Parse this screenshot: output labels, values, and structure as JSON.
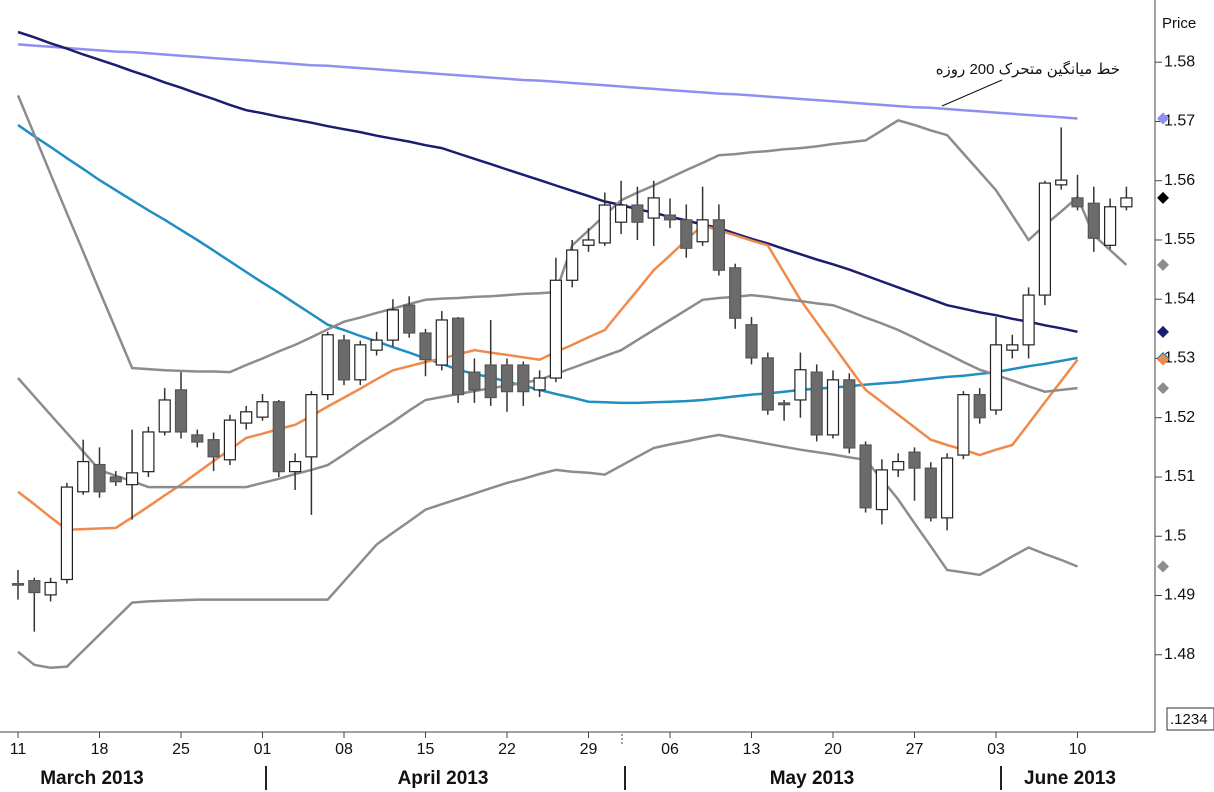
{
  "chart_data": {
    "type": "candlestick",
    "y_label": "Price",
    "annotation": "خط میانگین متحرک 200 روزه",
    "corner_label": ".1234",
    "months": [
      "March 2013",
      "April 2013",
      "May 2013",
      "June 2013"
    ],
    "categories": [
      "11",
      null,
      null,
      null,
      null,
      "18",
      null,
      null,
      null,
      null,
      "25",
      null,
      null,
      null,
      null,
      "01",
      null,
      null,
      null,
      null,
      "08",
      null,
      null,
      null,
      null,
      "15",
      null,
      null,
      null,
      null,
      "22",
      null,
      null,
      null,
      null,
      "29",
      null,
      null,
      null,
      null,
      "06",
      null,
      null,
      null,
      null,
      "13",
      null,
      null,
      null,
      null,
      "20",
      null,
      null,
      null,
      null,
      "27",
      null,
      null,
      null,
      null,
      "03",
      null,
      null,
      null,
      null,
      "10",
      null,
      null,
      null
    ],
    "open": [
      1.492,
      1.4925,
      1.4901,
      1.4927,
      1.5075,
      1.5121,
      1.51,
      1.5087,
      1.5109,
      1.5176,
      1.5247,
      1.5171,
      1.5163,
      1.5129,
      1.5191,
      1.5201,
      1.5227,
      1.5109,
      1.5134,
      1.5239,
      1.5331,
      1.5264,
      1.5314,
      1.5331,
      1.539,
      1.5343,
      1.5289,
      1.5368,
      1.5277,
      1.5289,
      1.5289,
      1.5289,
      1.5247,
      1.5267,
      1.5432,
      1.5491,
      1.5495,
      1.553,
      1.5559,
      1.5537,
      1.5542,
      1.5534,
      1.5497,
      1.5534,
      1.5453,
      1.5357,
      1.5301,
      1.5225,
      1.523,
      1.5277,
      1.5171,
      1.5264,
      1.5154,
      1.5045,
      1.5112,
      1.5142,
      1.5115,
      1.5031,
      1.5137,
      1.5239,
      1.5213,
      1.5314,
      1.5323,
      1.5407,
      1.5593,
      1.5571,
      1.5562,
      1.5491,
      1.5556
    ],
    "high": [
      1.4943,
      1.493,
      1.493,
      1.509,
      1.5163,
      1.515,
      1.511,
      1.518,
      1.5185,
      1.525,
      1.5277,
      1.518,
      1.5175,
      1.5205,
      1.522,
      1.524,
      1.523,
      1.514,
      1.5245,
      1.5345,
      1.534,
      1.533,
      1.5345,
      1.54,
      1.5405,
      1.535,
      1.538,
      1.537,
      1.53,
      1.5365,
      1.53,
      1.5295,
      1.528,
      1.547,
      1.55,
      1.552,
      1.558,
      1.56,
      1.559,
      1.56,
      1.557,
      1.556,
      1.559,
      1.556,
      1.546,
      1.537,
      1.531,
      1.523,
      1.531,
      1.529,
      1.528,
      1.5275,
      1.516,
      1.513,
      1.514,
      1.515,
      1.5125,
      1.514,
      1.5245,
      1.525,
      1.537,
      1.534,
      1.542,
      1.56,
      1.569,
      1.561,
      1.559,
      1.557,
      1.559
    ],
    "low": [
      1.4893,
      1.4839,
      1.489,
      1.492,
      1.507,
      1.5065,
      1.5085,
      1.5028,
      1.51,
      1.517,
      1.5165,
      1.515,
      1.511,
      1.512,
      1.518,
      1.5195,
      1.51,
      1.5078,
      1.5036,
      1.523,
      1.5255,
      1.5255,
      1.5305,
      1.532,
      1.5335,
      1.527,
      1.528,
      1.5225,
      1.5225,
      1.522,
      1.521,
      1.522,
      1.5235,
      1.526,
      1.542,
      1.548,
      1.549,
      1.551,
      1.55,
      1.549,
      1.552,
      1.547,
      1.549,
      1.544,
      1.535,
      1.529,
      1.5205,
      1.5195,
      1.52,
      1.516,
      1.5165,
      1.514,
      1.504,
      1.502,
      1.51,
      1.506,
      1.5025,
      1.501,
      1.513,
      1.519,
      1.5205,
      1.53,
      1.53,
      1.539,
      1.5585,
      1.555,
      1.548,
      1.5485,
      1.555
    ],
    "close": [
      1.4918,
      1.4905,
      1.4922,
      1.5083,
      1.5126,
      1.5075,
      1.5092,
      1.5107,
      1.5176,
      1.523,
      1.5176,
      1.5159,
      1.5134,
      1.5196,
      1.521,
      1.5227,
      1.5109,
      1.5126,
      1.5239,
      1.534,
      1.5264,
      1.5323,
      1.5331,
      1.5382,
      1.5343,
      1.5298,
      1.5365,
      1.5239,
      1.5247,
      1.5234,
      1.5244,
      1.5244,
      1.5267,
      1.5432,
      1.5483,
      1.55,
      1.5559,
      1.5559,
      1.553,
      1.5571,
      1.5534,
      1.5486,
      1.5534,
      1.5449,
      1.5368,
      1.5301,
      1.5213,
      1.5222,
      1.5281,
      1.5171,
      1.5264,
      1.5149,
      1.5048,
      1.5112,
      1.5126,
      1.5115,
      1.5031,
      1.5132,
      1.5239,
      1.52,
      1.5323,
      1.5323,
      1.5407,
      1.5596,
      1.5601,
      1.5556,
      1.5503,
      1.5556,
      1.5571
    ],
    "up_color": "#ffffff",
    "down_color": "#6b6b6b",
    "close_marker_color": "#000000",
    "series": [
      {
        "color": "#8f8ff0",
        "values": [
          1.583,
          1.5828,
          1.5826,
          1.5824,
          1.5822,
          1.582,
          1.5818,
          1.5817,
          1.5815,
          1.5813,
          1.5811,
          1.5809,
          1.5807,
          1.5805,
          1.5803,
          1.5801,
          1.5799,
          1.5797,
          1.5795,
          1.5794,
          1.5792,
          1.579,
          1.5788,
          1.5786,
          1.5784,
          1.5782,
          1.578,
          1.5778,
          1.5776,
          1.5774,
          1.5772,
          1.577,
          1.5769,
          1.5767,
          1.5765,
          1.5763,
          1.5761,
          1.5759,
          1.5757,
          1.5755,
          1.5753,
          1.5751,
          1.5749,
          1.5747,
          1.5746,
          1.5744,
          1.5742,
          1.574,
          1.5738,
          1.5736,
          1.5734,
          1.5732,
          1.573,
          1.5728,
          1.5726,
          1.5724,
          1.5723,
          1.5721,
          1.5719,
          1.5717,
          1.5715,
          1.5713,
          1.5711,
          1.5709,
          1.5707,
          1.5705,
          null,
          null,
          null
        ]
      },
      {
        "color": "#1c1c70",
        "values": [
          1.5851,
          1.5842,
          1.5832,
          1.5823,
          1.5813,
          1.5804,
          1.5795,
          1.5785,
          1.5776,
          1.5766,
          1.5757,
          1.5747,
          1.5738,
          1.5728,
          1.5719,
          1.5714,
          1.5708,
          1.5703,
          1.5698,
          1.5692,
          1.5687,
          1.5682,
          1.5676,
          1.5671,
          1.5666,
          1.566,
          1.5655,
          1.5646,
          1.5637,
          1.5628,
          1.5619,
          1.561,
          1.5601,
          1.5592,
          1.5583,
          1.5574,
          1.5565,
          1.5559,
          1.5552,
          1.5546,
          1.5539,
          1.5533,
          1.5526,
          1.552,
          1.5511,
          1.5502,
          1.5494,
          1.5485,
          1.5476,
          1.5467,
          1.5459,
          1.545,
          1.544,
          1.543,
          1.542,
          1.541,
          1.54,
          1.539,
          1.5384,
          1.5378,
          1.5373,
          1.5367,
          1.5362,
          1.5356,
          1.5351,
          1.5345,
          null,
          null,
          null
        ]
      },
      {
        "color": "#1f8fc2",
        "values": [
          1.5694,
          1.5675,
          1.5657,
          1.5638,
          1.562,
          1.5601,
          1.5584,
          1.5567,
          1.555,
          1.5534,
          1.5517,
          1.55,
          1.5482,
          1.5464,
          1.5446,
          1.5428,
          1.5411,
          1.5393,
          1.5375,
          1.5357,
          1.5348,
          1.5338,
          1.5329,
          1.5319,
          1.531,
          1.53,
          1.5291,
          1.5281,
          1.5274,
          1.5268,
          1.5261,
          1.5254,
          1.5247,
          1.524,
          1.5234,
          1.5227,
          1.5226,
          1.5225,
          1.5225,
          1.5226,
          1.5227,
          1.5228,
          1.523,
          1.5233,
          1.5236,
          1.5239,
          1.5241,
          1.5244,
          1.5247,
          1.5249,
          1.5251,
          1.5253,
          1.5256,
          1.5258,
          1.526,
          1.5263,
          1.5266,
          1.5269,
          1.5271,
          1.5274,
          1.5277,
          1.5282,
          1.5287,
          1.5291,
          1.5296,
          1.5301,
          null,
          null,
          null
        ]
      },
      {
        "color": "#f08a4b",
        "values": [
          1.5075,
          1.5054,
          1.5032,
          1.5011,
          1.5012,
          1.5013,
          1.5014,
          1.5032,
          1.505,
          1.5069,
          1.5087,
          1.5107,
          1.5127,
          1.5146,
          1.5166,
          1.5173,
          1.5181,
          1.5188,
          1.5203,
          1.5219,
          1.5234,
          1.5249,
          1.5265,
          1.528,
          1.5287,
          1.5294,
          1.53,
          1.5307,
          1.5314,
          1.531,
          1.5306,
          1.5302,
          1.5298,
          1.5311,
          1.5323,
          1.5336,
          1.5348,
          1.5382,
          1.5415,
          1.5449,
          1.5474,
          1.55,
          1.5525,
          1.5516,
          1.5508,
          1.5499,
          1.5491,
          1.5445,
          1.5399,
          1.5361,
          1.5323,
          1.5285,
          1.5247,
          1.5226,
          1.5205,
          1.5184,
          1.5163,
          1.5154,
          1.5146,
          1.5137,
          1.5146,
          1.5154,
          1.519,
          1.5226,
          1.5262,
          1.5298,
          null,
          null,
          null
        ]
      },
      {
        "color": "#8c8c8c",
        "values": [
          1.5744,
          1.5678,
          1.5611,
          1.5545,
          1.548,
          1.5414,
          1.5349,
          1.5284,
          1.5282,
          1.528,
          1.5279,
          1.5278,
          1.5278,
          1.5277,
          1.5289,
          1.53,
          1.5312,
          1.5323,
          1.5336,
          1.5349,
          1.5362,
          1.5369,
          1.5377,
          1.5384,
          1.5392,
          1.5399,
          1.5401,
          1.5402,
          1.5404,
          1.5405,
          1.5407,
          1.5409,
          1.541,
          1.5412,
          1.5491,
          1.5516,
          1.5542,
          1.5567,
          1.558,
          1.5592,
          1.5605,
          1.5618,
          1.563,
          1.5643,
          1.5645,
          1.5648,
          1.565,
          1.5653,
          1.5655,
          1.5658,
          1.5662,
          1.5665,
          1.5668,
          1.5685,
          1.5702,
          1.5694,
          1.5685,
          1.5677,
          1.5646,
          1.5615,
          1.5584,
          1.5542,
          1.55,
          1.5525,
          1.5548,
          1.5572,
          1.5508,
          1.5483,
          1.5458
        ]
      },
      {
        "color": "#8c8c8c",
        "values": [
          1.5267,
          1.5236,
          1.5205,
          1.5174,
          1.5143,
          1.5112,
          1.5102,
          1.5093,
          1.5083,
          1.5083,
          1.5083,
          1.5083,
          1.5083,
          1.5083,
          1.5083,
          1.509,
          1.5097,
          1.5105,
          1.5112,
          1.512,
          1.5138,
          1.5157,
          1.5175,
          1.5193,
          1.5212,
          1.523,
          1.5235,
          1.524,
          1.5245,
          1.525,
          1.5254,
          1.5259,
          1.5264,
          1.5274,
          1.5284,
          1.5294,
          1.5304,
          1.5314,
          1.5331,
          1.5348,
          1.5365,
          1.5382,
          1.5399,
          1.5402,
          1.5404,
          1.5407,
          1.5404,
          1.54,
          1.5397,
          1.5393,
          1.539,
          1.538,
          1.5369,
          1.5359,
          1.5348,
          1.5335,
          1.5321,
          1.5308,
          1.5294,
          1.5281,
          1.5272,
          1.5263,
          1.5253,
          1.5244,
          1.5247,
          1.525,
          null,
          null,
          null
        ]
      },
      {
        "color": "#8c8c8c",
        "values": [
          1.4805,
          1.4783,
          1.4778,
          1.478,
          1.4807,
          1.4834,
          1.4861,
          1.4888,
          1.489,
          1.4891,
          1.4892,
          1.4893,
          1.4893,
          1.4893,
          1.4893,
          1.4893,
          1.4893,
          1.4893,
          1.4893,
          1.4893,
          1.4924,
          1.4955,
          1.4986,
          1.5006,
          1.5025,
          1.5045,
          1.5054,
          1.5063,
          1.5072,
          1.5081,
          1.509,
          1.5097,
          1.5105,
          1.5112,
          1.5109,
          1.5107,
          1.5104,
          1.5119,
          1.5134,
          1.5149,
          1.5155,
          1.516,
          1.5166,
          1.5171,
          1.5166,
          1.5161,
          1.5156,
          1.5151,
          1.5146,
          1.5142,
          1.5138,
          1.5133,
          1.5129,
          1.5096,
          1.5062,
          1.5022,
          1.4983,
          1.4943,
          1.4939,
          1.4935,
          1.495,
          1.4966,
          1.4981,
          1.497,
          1.496,
          1.4949,
          null,
          null,
          null
        ]
      }
    ],
    "ylim": [
      1.4673,
      1.5905
    ],
    "yticks": [
      1.48,
      1.49,
      1.5,
      1.51,
      1.52,
      1.53,
      1.54,
      1.55,
      1.56,
      1.57,
      1.58
    ]
  }
}
